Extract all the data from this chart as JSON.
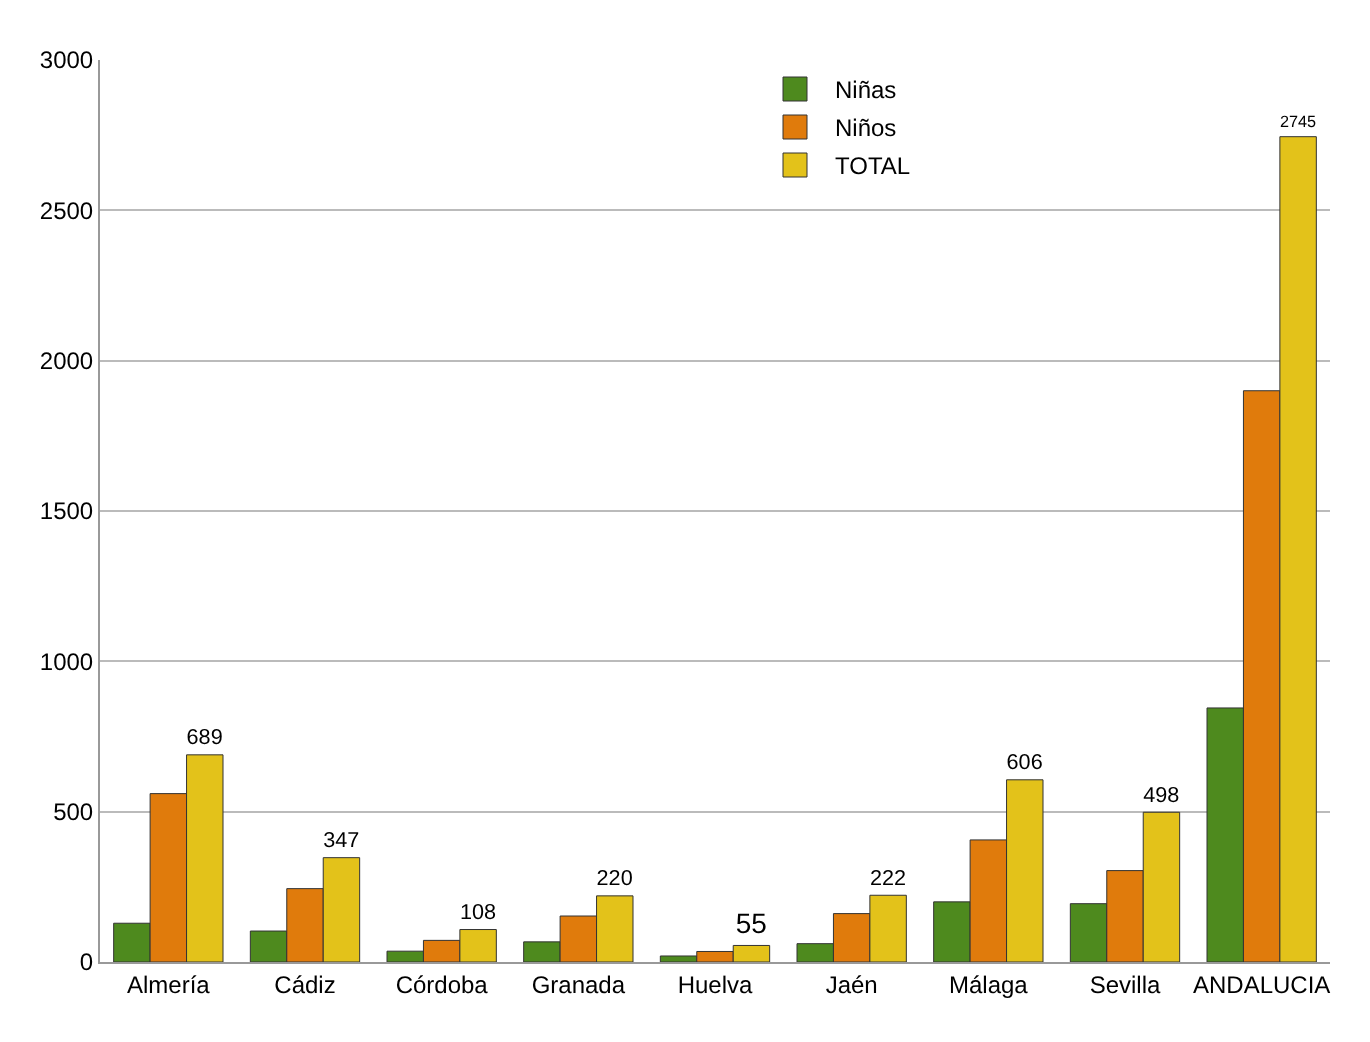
{
  "chart_data": {
    "type": "bar",
    "categories": [
      "Almería",
      "Cádiz",
      "Córdoba",
      "Granada",
      "Huelva",
      "Jaén",
      "Málaga",
      "Sevilla",
      "ANDALUCIA"
    ],
    "series": [
      {
        "name": "Niñas",
        "color": "#4e8a1e",
        "values": [
          129,
          103,
          36,
          67,
          20,
          61,
          200,
          194,
          845
        ]
      },
      {
        "name": "Niños",
        "color": "#e07b0c",
        "values": [
          560,
          244,
          72,
          153,
          35,
          161,
          406,
          304,
          1900
        ]
      },
      {
        "name": "TOTAL",
        "color": "#e3c21a",
        "values": [
          689,
          347,
          108,
          220,
          55,
          222,
          606,
          498,
          2745
        ],
        "value_labels": [
          "689",
          "347",
          "108",
          "220",
          "55",
          "222",
          "606",
          "498",
          "2745"
        ]
      }
    ],
    "ylim": [
      0,
      3000
    ],
    "yticks": [
      0,
      500,
      1000,
      1500,
      2000,
      2500,
      3000
    ],
    "grid": "y",
    "legend": "top"
  }
}
